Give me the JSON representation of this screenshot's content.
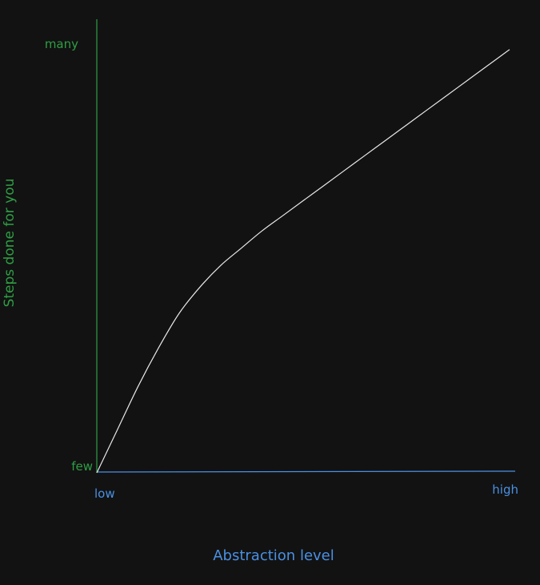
{
  "chart_data": {
    "type": "line",
    "title": "",
    "xlabel": "Abstraction level",
    "ylabel": "Steps done for you",
    "x_tick_labels": [
      "low",
      "high"
    ],
    "y_tick_labels": [
      "few",
      "many"
    ],
    "xlim": [
      0,
      1
    ],
    "ylim": [
      0,
      1
    ],
    "grid": false,
    "series": [
      {
        "x": [
          0.0,
          0.05,
          0.1,
          0.15,
          0.2,
          0.25,
          0.3,
          0.35,
          0.4,
          0.45,
          0.5,
          0.55,
          0.6,
          0.65,
          0.7,
          0.75,
          0.8,
          0.85,
          0.9,
          0.95,
          1.0
        ],
        "y": [
          0.0,
          0.1,
          0.2,
          0.29,
          0.37,
          0.43,
          0.48,
          0.52,
          0.56,
          0.595,
          0.63,
          0.665,
          0.7,
          0.735,
          0.77,
          0.805,
          0.84,
          0.875,
          0.91,
          0.945,
          0.98
        ]
      }
    ]
  },
  "colors": {
    "background": "#121212",
    "y_axis": "#2f9e44",
    "x_axis": "#4a90e2",
    "curve": "#e8e8e8"
  }
}
